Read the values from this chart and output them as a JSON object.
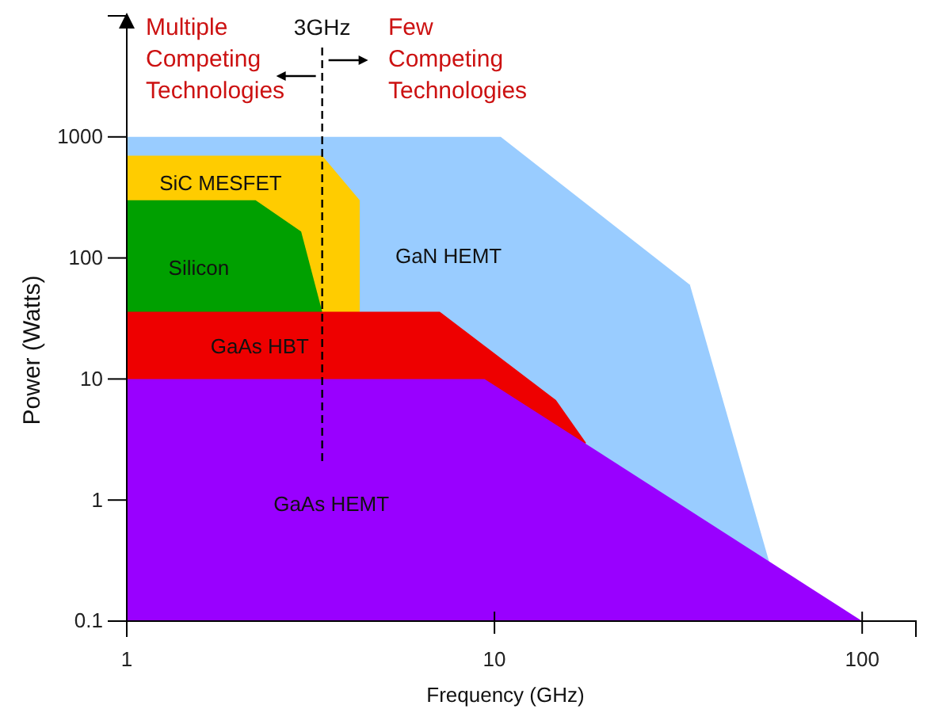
{
  "chart_data": {
    "type": "area",
    "xlabel": "Frequency (GHz)",
    "ylabel": "Power (Watts)",
    "log": "xy",
    "xlim": [
      1,
      140
    ],
    "ylim": [
      0.1,
      10000
    ],
    "xticks": [
      1,
      10,
      100
    ],
    "yticks": [
      0.1,
      1,
      10,
      100,
      1000
    ],
    "grid": false,
    "legend": false,
    "series": [
      {
        "name": "GaN HEMT",
        "color": "#99ccff",
        "x": [
          1,
          10.4,
          34,
          56
        ],
        "values": [
          1000,
          1000,
          60,
          0.3
        ]
      },
      {
        "name": "SiC MESFET",
        "color": "#ffcc00",
        "x": [
          1,
          3.4,
          4.3
        ],
        "values": [
          700,
          700,
          300
        ]
      },
      {
        "name": "Silicon",
        "color": "#00a000",
        "x": [
          1,
          2.24,
          2.98,
          3.4
        ],
        "values": [
          300,
          300,
          165,
          36
        ]
      },
      {
        "name": "GaAs HBT",
        "color": "#ee0000",
        "x": [
          1,
          7.1,
          14.7,
          17.7
        ],
        "values": [
          36,
          36,
          6.7,
          3.0
        ]
      },
      {
        "name": "GaAs HEMT",
        "color": "#9900ff",
        "x": [
          1,
          9.4,
          100
        ],
        "values": [
          10,
          10,
          0.1
        ]
      }
    ],
    "ref_lines": [
      {
        "axis": "x",
        "value": 3.4,
        "label": "3GHz",
        "line_style": "dashed",
        "color": "#000000"
      }
    ],
    "annotations": [
      "Multiple Competing Technologies",
      "Few Competing Technologies"
    ]
  }
}
